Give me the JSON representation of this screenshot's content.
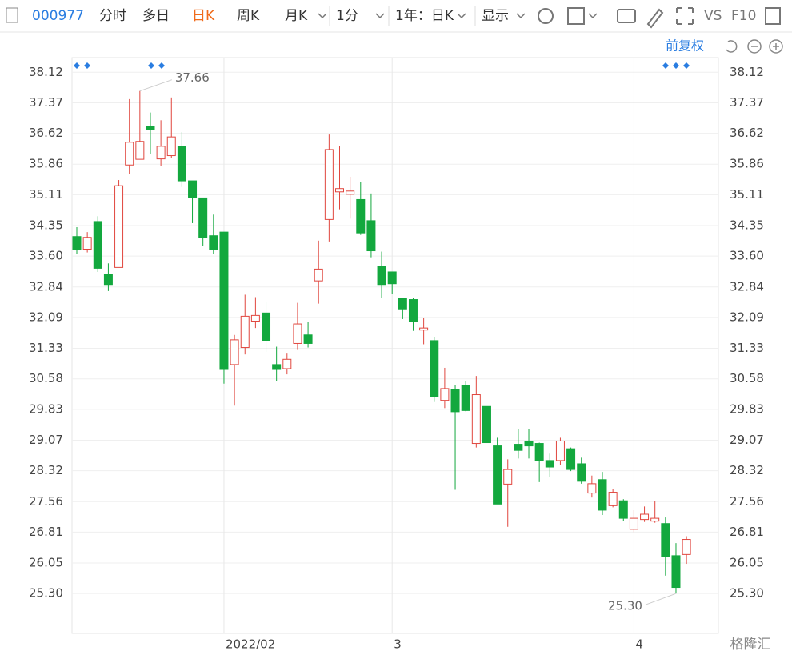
{
  "toolbar": {
    "code": "000977",
    "tabs": [
      "分时",
      "多日",
      "日K",
      "周K",
      "月K",
      "1分",
      "1年：日K",
      "显示"
    ],
    "active": "日K",
    "vs": "VS",
    "f10": "F10",
    "adjust": "前复权"
  },
  "watermark": "格隆汇",
  "chart_data": {
    "type": "candlestick",
    "up_color": "#e0463e",
    "down_color": "#13a83e",
    "grid": true,
    "categories": [
      null,
      null,
      null,
      null,
      null,
      null,
      null,
      null,
      null,
      null,
      null,
      null,
      null,
      null,
      "2022/02",
      null,
      null,
      null,
      null,
      null,
      null,
      null,
      null,
      null,
      null,
      null,
      null,
      null,
      null,
      null,
      "3",
      null,
      null,
      null,
      null,
      null,
      null,
      null,
      null,
      null,
      null,
      null,
      null,
      null,
      null,
      null,
      null,
      null,
      null,
      null,
      null,
      null,
      null,
      "4",
      null,
      null,
      null,
      null,
      null
    ],
    "open": [
      34.08,
      33.77,
      34.45,
      33.15,
      33.32,
      35.84,
      35.98,
      36.79,
      35.99,
      36.07,
      36.3,
      35.45,
      35.03,
      34.1,
      34.19,
      30.93,
      31.35,
      32.0,
      32.2,
      30.93,
      30.83,
      31.45,
      31.66,
      32.99,
      34.5,
      35.18,
      35.12,
      34.99,
      34.47,
      33.34,
      33.21,
      32.57,
      32.53,
      31.78,
      31.52,
      30.05,
      30.31,
      30.42,
      28.99,
      29.9,
      28.93,
      27.99,
      28.97,
      29.05,
      28.99,
      28.57,
      28.57,
      28.86,
      28.49,
      27.77,
      28.1,
      27.46,
      27.58,
      26.88,
      27.12,
      27.08,
      27.02,
      26.23,
      26.26
    ],
    "high": [
      34.31,
      34.19,
      34.58,
      33.42,
      35.47,
      37.46,
      37.66,
      37.13,
      36.94,
      37.5,
      36.65,
      35.45,
      35.03,
      34.62,
      34.19,
      31.66,
      32.65,
      32.59,
      32.47,
      31.37,
      31.2,
      32.45,
      31.99,
      33.98,
      36.59,
      36.3,
      35.55,
      35.43,
      35.14,
      33.71,
      33.21,
      32.57,
      32.57,
      32.07,
      31.6,
      30.85,
      30.42,
      30.52,
      30.65,
      29.9,
      29.13,
      28.6,
      29.34,
      29.34,
      29.01,
      28.74,
      29.13,
      28.89,
      28.64,
      28.2,
      28.29,
      27.87,
      27.62,
      27.35,
      27.44,
      27.58,
      27.17,
      26.54,
      26.71
    ],
    "low": [
      33.65,
      33.69,
      33.21,
      32.74,
      33.32,
      35.61,
      35.98,
      36.11,
      35.82,
      36.01,
      35.3,
      34.41,
      33.85,
      33.65,
      30.46,
      29.92,
      31.18,
      31.83,
      31.24,
      30.52,
      30.69,
      31.29,
      31.35,
      32.43,
      33.96,
      34.75,
      34.52,
      34.12,
      33.57,
      32.57,
      32.67,
      32.05,
      31.76,
      31.43,
      30.01,
      29.86,
      27.85,
      29.78,
      28.89,
      29.01,
      27.5,
      26.94,
      28.62,
      28.62,
      28.04,
      28.16,
      28.47,
      28.31,
      28.0,
      27.66,
      27.23,
      27.42,
      27.09,
      26.81,
      27.06,
      27.04,
      25.74,
      25.3,
      26.03
    ],
    "close": [
      33.75,
      34.06,
      33.3,
      32.9,
      35.33,
      36.4,
      36.42,
      36.71,
      36.3,
      36.53,
      35.45,
      35.03,
      34.06,
      33.77,
      30.81,
      31.54,
      32.12,
      32.14,
      31.51,
      30.81,
      31.06,
      31.93,
      31.45,
      33.28,
      36.22,
      35.26,
      35.2,
      34.17,
      33.73,
      32.9,
      32.92,
      32.3,
      31.99,
      31.83,
      30.15,
      30.34,
      29.77,
      29.8,
      30.19,
      29.01,
      27.5,
      28.35,
      28.82,
      28.93,
      28.57,
      28.41,
      29.05,
      28.35,
      28.06,
      28.0,
      27.35,
      27.79,
      27.15,
      27.15,
      27.25,
      27.15,
      26.21,
      25.45,
      26.63
    ],
    "max_label": "37.66",
    "min_label": "25.30",
    "ylim": [
      24.32,
      38.48
    ],
    "yticks": [
      38.12,
      37.37,
      36.62,
      35.86,
      35.11,
      34.35,
      {
        "value": 33.6,
        "label": "33.60"
      },
      32.84,
      32.09,
      31.33,
      30.58,
      29.83,
      29.07,
      28.32,
      27.56,
      26.81,
      26.05,
      {
        "value": 25.3,
        "label": "25.30"
      }
    ]
  }
}
